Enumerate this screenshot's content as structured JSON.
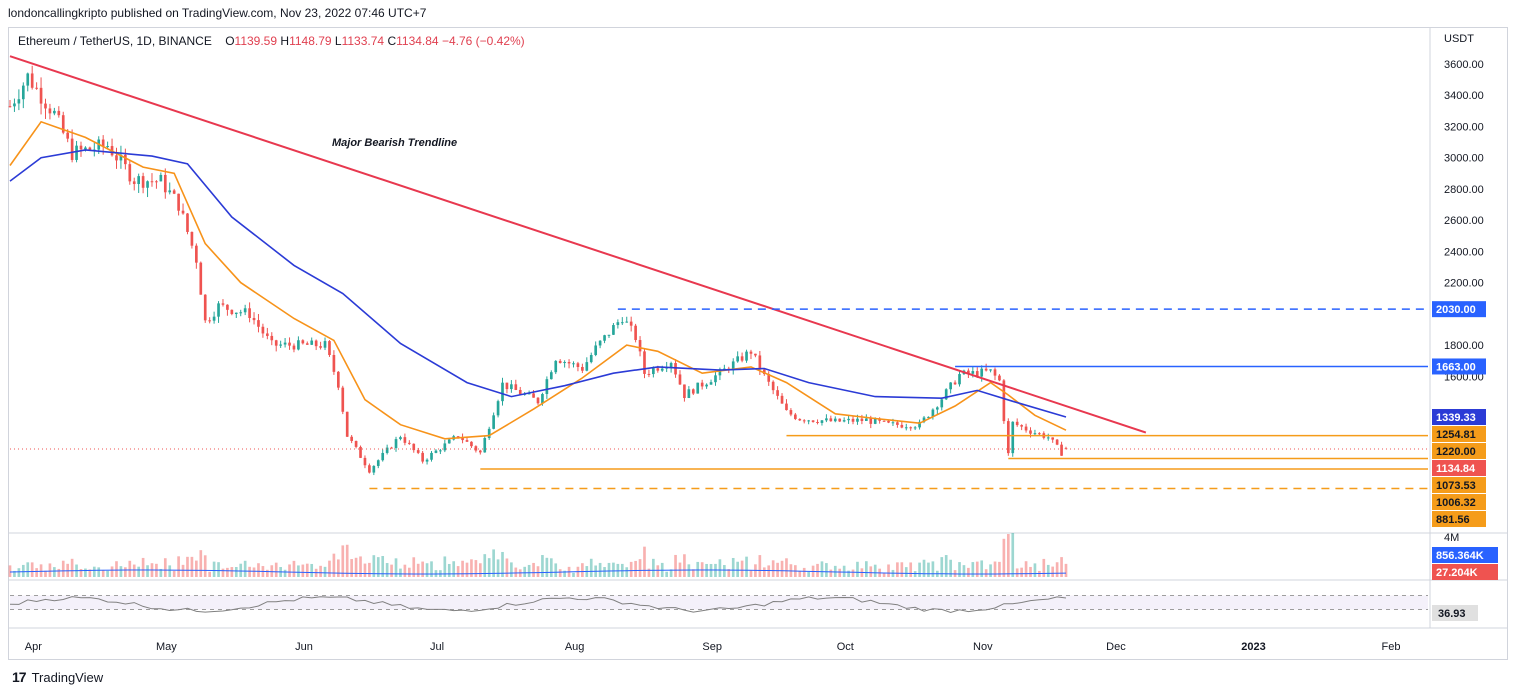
{
  "header": {
    "published": "londoncallingkripto published on TradingView.com, Nov 23, 2022 07:46 UTC+7"
  },
  "legend": {
    "symbol": "Ethereum / TetherUS, 1D, BINANCE",
    "o_label": "O",
    "o_value": "1139.59",
    "h_label": "H",
    "h_value": "1148.79",
    "l_label": "L",
    "l_value": "1133.74",
    "c_label": "C",
    "c_value": "1134.84",
    "change": "−4.76 (−0.42%)"
  },
  "footer": {
    "brand": "TradingView",
    "logo": "tradingview-logo-icon"
  },
  "colors": {
    "up": "#26a69a",
    "down": "#ef5350",
    "ema_fast": "#f7931a",
    "ema_slow": "#2b3bd6",
    "trendline": "#e8384f",
    "level_blue": "#2962ff",
    "level_orange": "#f59c1a",
    "price_tag": "#ef5350",
    "rsi": "#808080"
  },
  "chart_data": {
    "type": "candlestick",
    "symbol": "Ethereum / TetherUS",
    "interval": "1D",
    "exchange": "BINANCE",
    "y_axis_unit": "USDT",
    "y_ticks": [
      1600,
      1800,
      2200,
      2400,
      2600,
      2800,
      3000,
      3200,
      3400,
      3600
    ],
    "y_tick_labels": [
      "1600.00",
      "1800.00",
      "2200.00",
      "2400.00",
      "2600.00",
      "2800.00",
      "3000.00",
      "3200.00",
      "3400.00",
      "3600.00"
    ],
    "ylim": [
      800,
      3700
    ],
    "x_ticks": [
      "Apr",
      "May",
      "Jun",
      "Jul",
      "Aug",
      "Sep",
      "Oct",
      "Nov",
      "Dec",
      "2023",
      "Feb"
    ],
    "x_range": [
      "2022-03-29",
      "2023-02-28"
    ],
    "key_points": [
      {
        "date": "2022-03-29",
        "value": 3330
      },
      {
        "date": "2022-04-02",
        "value": 3520
      },
      {
        "date": "2022-04-08",
        "value": 3280
      },
      {
        "date": "2022-04-12",
        "value": 3030
      },
      {
        "date": "2022-04-20",
        "value": 3080
      },
      {
        "date": "2022-04-26",
        "value": 2860
      },
      {
        "date": "2022-05-02",
        "value": 2850
      },
      {
        "date": "2022-05-06",
        "value": 2700
      },
      {
        "date": "2022-05-10",
        "value": 2350
      },
      {
        "date": "2022-05-12",
        "value": 1950
      },
      {
        "date": "2022-05-15",
        "value": 2050
      },
      {
        "date": "2022-05-22",
        "value": 2000
      },
      {
        "date": "2022-05-27",
        "value": 1800
      },
      {
        "date": "2022-06-03",
        "value": 1800
      },
      {
        "date": "2022-06-08",
        "value": 1800
      },
      {
        "date": "2022-06-11",
        "value": 1550
      },
      {
        "date": "2022-06-13",
        "value": 1220
      },
      {
        "date": "2022-06-18",
        "value": 1000
      },
      {
        "date": "2022-06-25",
        "value": 1220
      },
      {
        "date": "2022-06-30",
        "value": 1060
      },
      {
        "date": "2022-07-08",
        "value": 1220
      },
      {
        "date": "2022-07-13",
        "value": 1110
      },
      {
        "date": "2022-07-18",
        "value": 1550
      },
      {
        "date": "2022-07-26",
        "value": 1440
      },
      {
        "date": "2022-07-30",
        "value": 1720
      },
      {
        "date": "2022-08-05",
        "value": 1650
      },
      {
        "date": "2022-08-08",
        "value": 1780
      },
      {
        "date": "2022-08-14",
        "value": 1980
      },
      {
        "date": "2022-08-17",
        "value": 1850
      },
      {
        "date": "2022-08-19",
        "value": 1620
      },
      {
        "date": "2022-08-25",
        "value": 1700
      },
      {
        "date": "2022-08-28",
        "value": 1480
      },
      {
        "date": "2022-09-05",
        "value": 1620
      },
      {
        "date": "2022-09-12",
        "value": 1760
      },
      {
        "date": "2022-09-15",
        "value": 1600
      },
      {
        "date": "2022-09-20",
        "value": 1370
      },
      {
        "date": "2022-09-23",
        "value": 1330
      },
      {
        "date": "2022-10-01",
        "value": 1310
      },
      {
        "date": "2022-10-08",
        "value": 1320
      },
      {
        "date": "2022-10-13",
        "value": 1290
      },
      {
        "date": "2022-10-20",
        "value": 1290
      },
      {
        "date": "2022-10-25",
        "value": 1460
      },
      {
        "date": "2022-10-29",
        "value": 1610
      },
      {
        "date": "2022-11-05",
        "value": 1630
      },
      {
        "date": "2022-11-07",
        "value": 1570
      },
      {
        "date": "2022-11-08",
        "value": 1330
      },
      {
        "date": "2022-11-09",
        "value": 1100
      },
      {
        "date": "2022-11-10",
        "value": 1300
      },
      {
        "date": "2022-11-14",
        "value": 1250
      },
      {
        "date": "2022-11-18",
        "value": 1210
      },
      {
        "date": "2022-11-21",
        "value": 1110
      },
      {
        "date": "2022-11-22",
        "value": 1134.84
      }
    ],
    "ema_fast_points": [
      {
        "date": "2022-03-29",
        "value": 2950
      },
      {
        "date": "2022-04-05",
        "value": 3230
      },
      {
        "date": "2022-04-15",
        "value": 3130
      },
      {
        "date": "2022-04-28",
        "value": 2940
      },
      {
        "date": "2022-05-05",
        "value": 2900
      },
      {
        "date": "2022-05-12",
        "value": 2450
      },
      {
        "date": "2022-05-20",
        "value": 2200
      },
      {
        "date": "2022-06-01",
        "value": 1970
      },
      {
        "date": "2022-06-10",
        "value": 1830
      },
      {
        "date": "2022-06-17",
        "value": 1450
      },
      {
        "date": "2022-06-25",
        "value": 1290
      },
      {
        "date": "2022-07-05",
        "value": 1200
      },
      {
        "date": "2022-07-15",
        "value": 1220
      },
      {
        "date": "2022-07-25",
        "value": 1390
      },
      {
        "date": "2022-08-05",
        "value": 1590
      },
      {
        "date": "2022-08-15",
        "value": 1800
      },
      {
        "date": "2022-08-22",
        "value": 1760
      },
      {
        "date": "2022-09-01",
        "value": 1620
      },
      {
        "date": "2022-09-12",
        "value": 1660
      },
      {
        "date": "2022-09-20",
        "value": 1560
      },
      {
        "date": "2022-10-01",
        "value": 1360
      },
      {
        "date": "2022-10-10",
        "value": 1330
      },
      {
        "date": "2022-10-20",
        "value": 1300
      },
      {
        "date": "2022-10-28",
        "value": 1410
      },
      {
        "date": "2022-11-05",
        "value": 1560
      },
      {
        "date": "2022-11-09",
        "value": 1480
      },
      {
        "date": "2022-11-15",
        "value": 1350
      },
      {
        "date": "2022-11-22",
        "value": 1254.81
      }
    ],
    "ema_slow_points": [
      {
        "date": "2022-03-29",
        "value": 2850
      },
      {
        "date": "2022-04-05",
        "value": 3000
      },
      {
        "date": "2022-04-15",
        "value": 3050
      },
      {
        "date": "2022-04-30",
        "value": 3010
      },
      {
        "date": "2022-05-08",
        "value": 2960
      },
      {
        "date": "2022-05-18",
        "value": 2620
      },
      {
        "date": "2022-06-01",
        "value": 2310
      },
      {
        "date": "2022-06-12",
        "value": 2130
      },
      {
        "date": "2022-06-25",
        "value": 1810
      },
      {
        "date": "2022-07-10",
        "value": 1560
      },
      {
        "date": "2022-07-20",
        "value": 1470
      },
      {
        "date": "2022-08-01",
        "value": 1540
      },
      {
        "date": "2022-08-12",
        "value": 1620
      },
      {
        "date": "2022-08-22",
        "value": 1660
      },
      {
        "date": "2022-09-05",
        "value": 1640
      },
      {
        "date": "2022-09-15",
        "value": 1650
      },
      {
        "date": "2022-09-25",
        "value": 1560
      },
      {
        "date": "2022-10-10",
        "value": 1470
      },
      {
        "date": "2022-10-25",
        "value": 1460
      },
      {
        "date": "2022-11-02",
        "value": 1510
      },
      {
        "date": "2022-11-10",
        "value": 1440
      },
      {
        "date": "2022-11-22",
        "value": 1339.33
      }
    ],
    "trendline": {
      "label": "Major Bearish Trendline",
      "start": {
        "date": "2022-03-29",
        "value": 3650
      },
      "end": {
        "date": "2022-12-10",
        "value": 1240
      }
    },
    "horizontal_levels": [
      {
        "value": 2030.0,
        "label": "2030.00",
        "color": "#2962ff",
        "style": "dashed",
        "from": "2022-08-13"
      },
      {
        "value": 1663.0,
        "label": "1663.00",
        "color": "#2962ff",
        "style": "solid",
        "from": "2022-10-28"
      },
      {
        "value": 1220.0,
        "label": "1220.00",
        "color": "#f59c1a",
        "style": "solid",
        "from": "2022-09-20"
      },
      {
        "value": 1073.53,
        "label": "1073.53",
        "color": "#f59c1a",
        "style": "solid",
        "from": "2022-11-09"
      },
      {
        "value": 1006.32,
        "label": "1006.32",
        "color": "#f59c1a",
        "style": "solid",
        "from": "2022-07-13"
      },
      {
        "value": 881.56,
        "label": "881.56",
        "color": "#f59c1a",
        "style": "dashed",
        "from": "2022-06-18"
      }
    ],
    "price_tags": [
      {
        "value": 2030.0,
        "label": "2030.00",
        "bg": "#2962ff",
        "fg": "#ffffff"
      },
      {
        "value": 1663.0,
        "label": "1663.00",
        "bg": "#2962ff",
        "fg": "#ffffff"
      },
      {
        "value": 1339.33,
        "label": "1339.33",
        "bg": "#2b3bd6",
        "fg": "#ffffff"
      },
      {
        "value": 1254.81,
        "label": "1254.81",
        "bg": "#f59c1a",
        "fg": "#131722"
      },
      {
        "value": 1220.0,
        "label": "1220.00",
        "bg": "#f59c1a",
        "fg": "#131722"
      },
      {
        "value": 1134.84,
        "label": "1134.84",
        "bg": "#ef5350",
        "fg": "#ffffff"
      },
      {
        "value": 1073.53,
        "label": "1073.53",
        "bg": "#f59c1a",
        "fg": "#131722"
      },
      {
        "value": 1006.32,
        "label": "1006.32",
        "bg": "#f59c1a",
        "fg": "#131722"
      },
      {
        "value": 881.56,
        "label": "881.56",
        "bg": "#f59c1a",
        "fg": "#131722"
      }
    ],
    "volume": {
      "axis_label": "4M",
      "tags": [
        {
          "label": "856.364K",
          "bg": "#2962ff",
          "fg": "#ffffff"
        },
        {
          "label": "27.204K",
          "bg": "#ef5350",
          "fg": "#ffffff"
        }
      ]
    },
    "rsi": {
      "value": 36.93,
      "label": "36.93",
      "bands": [
        30,
        70
      ]
    }
  }
}
